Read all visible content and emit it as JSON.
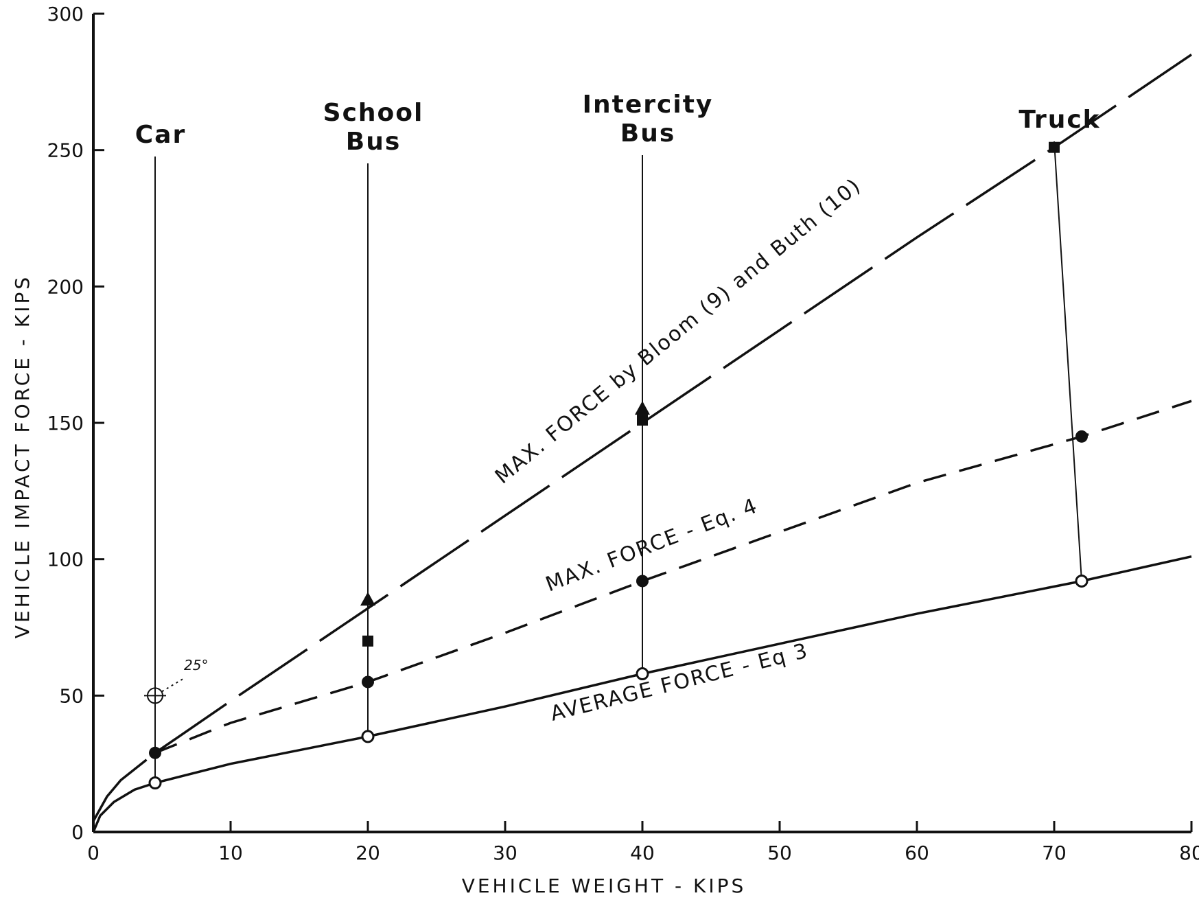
{
  "chart_data": {
    "type": "line",
    "title": "",
    "xlabel": "VEHICLE WEIGHT - KIPS",
    "ylabel": "VEHICLE IMPACT FORCE - KIPS",
    "xlim": [
      0,
      80
    ],
    "ylim": [
      0,
      300
    ],
    "xticks": [
      0,
      10,
      20,
      30,
      40,
      50,
      60,
      70,
      80
    ],
    "yticks": [
      0,
      50,
      100,
      150,
      200,
      250,
      300
    ],
    "grid": false,
    "series": [
      {
        "name": "MAX. FORCE by Bloom (9) and Buth (10)",
        "style": "long-dash",
        "x": [
          0,
          1,
          2,
          4.5,
          10,
          20,
          30,
          40,
          50,
          60,
          70,
          80
        ],
        "y": [
          4,
          13,
          19,
          29,
          48,
          82,
          116,
          150,
          184,
          218,
          251,
          285
        ]
      },
      {
        "name": "MAX. FORCE - Eq. 4",
        "style": "short-dash",
        "x": [
          4.5,
          10,
          20,
          30,
          40,
          50,
          60,
          72,
          80
        ],
        "y": [
          29,
          40,
          55,
          73,
          92,
          110,
          128,
          145,
          158
        ]
      },
      {
        "name": "AVERAGE FORCE - Eq 3",
        "style": "solid",
        "x": [
          0,
          0.5,
          1.5,
          3,
          4.5,
          10,
          20,
          30,
          40,
          50,
          60,
          72,
          80
        ],
        "y": [
          0,
          6,
          11,
          15.5,
          18,
          25,
          35,
          46,
          58,
          69,
          80,
          92,
          101
        ]
      }
    ],
    "markers": {
      "filled_circles": [
        [
          4.5,
          29
        ],
        [
          20,
          55
        ],
        [
          40,
          92
        ],
        [
          72,
          145
        ]
      ],
      "open_circles": [
        [
          4.5,
          18
        ],
        [
          20,
          35
        ],
        [
          40,
          58
        ],
        [
          72,
          92
        ]
      ],
      "filled_squares": [
        [
          20,
          70
        ],
        [
          40,
          151
        ],
        [
          70,
          251
        ]
      ],
      "filled_triangles": [
        [
          20,
          85
        ],
        [
          40,
          155
        ]
      ],
      "crosshair_circle": [
        [
          4.5,
          50
        ]
      ]
    },
    "vehicles": [
      {
        "label_lines": [
          "Car"
        ],
        "x": 4.5
      },
      {
        "label_lines": [
          "School",
          "Bus"
        ],
        "x": 20
      },
      {
        "label_lines": [
          "Intercity",
          "Bus"
        ],
        "x": 40
      },
      {
        "label_lines": [
          "Truck"
        ],
        "x": 70
      }
    ],
    "annotations": {
      "angle_label": "25°"
    }
  }
}
